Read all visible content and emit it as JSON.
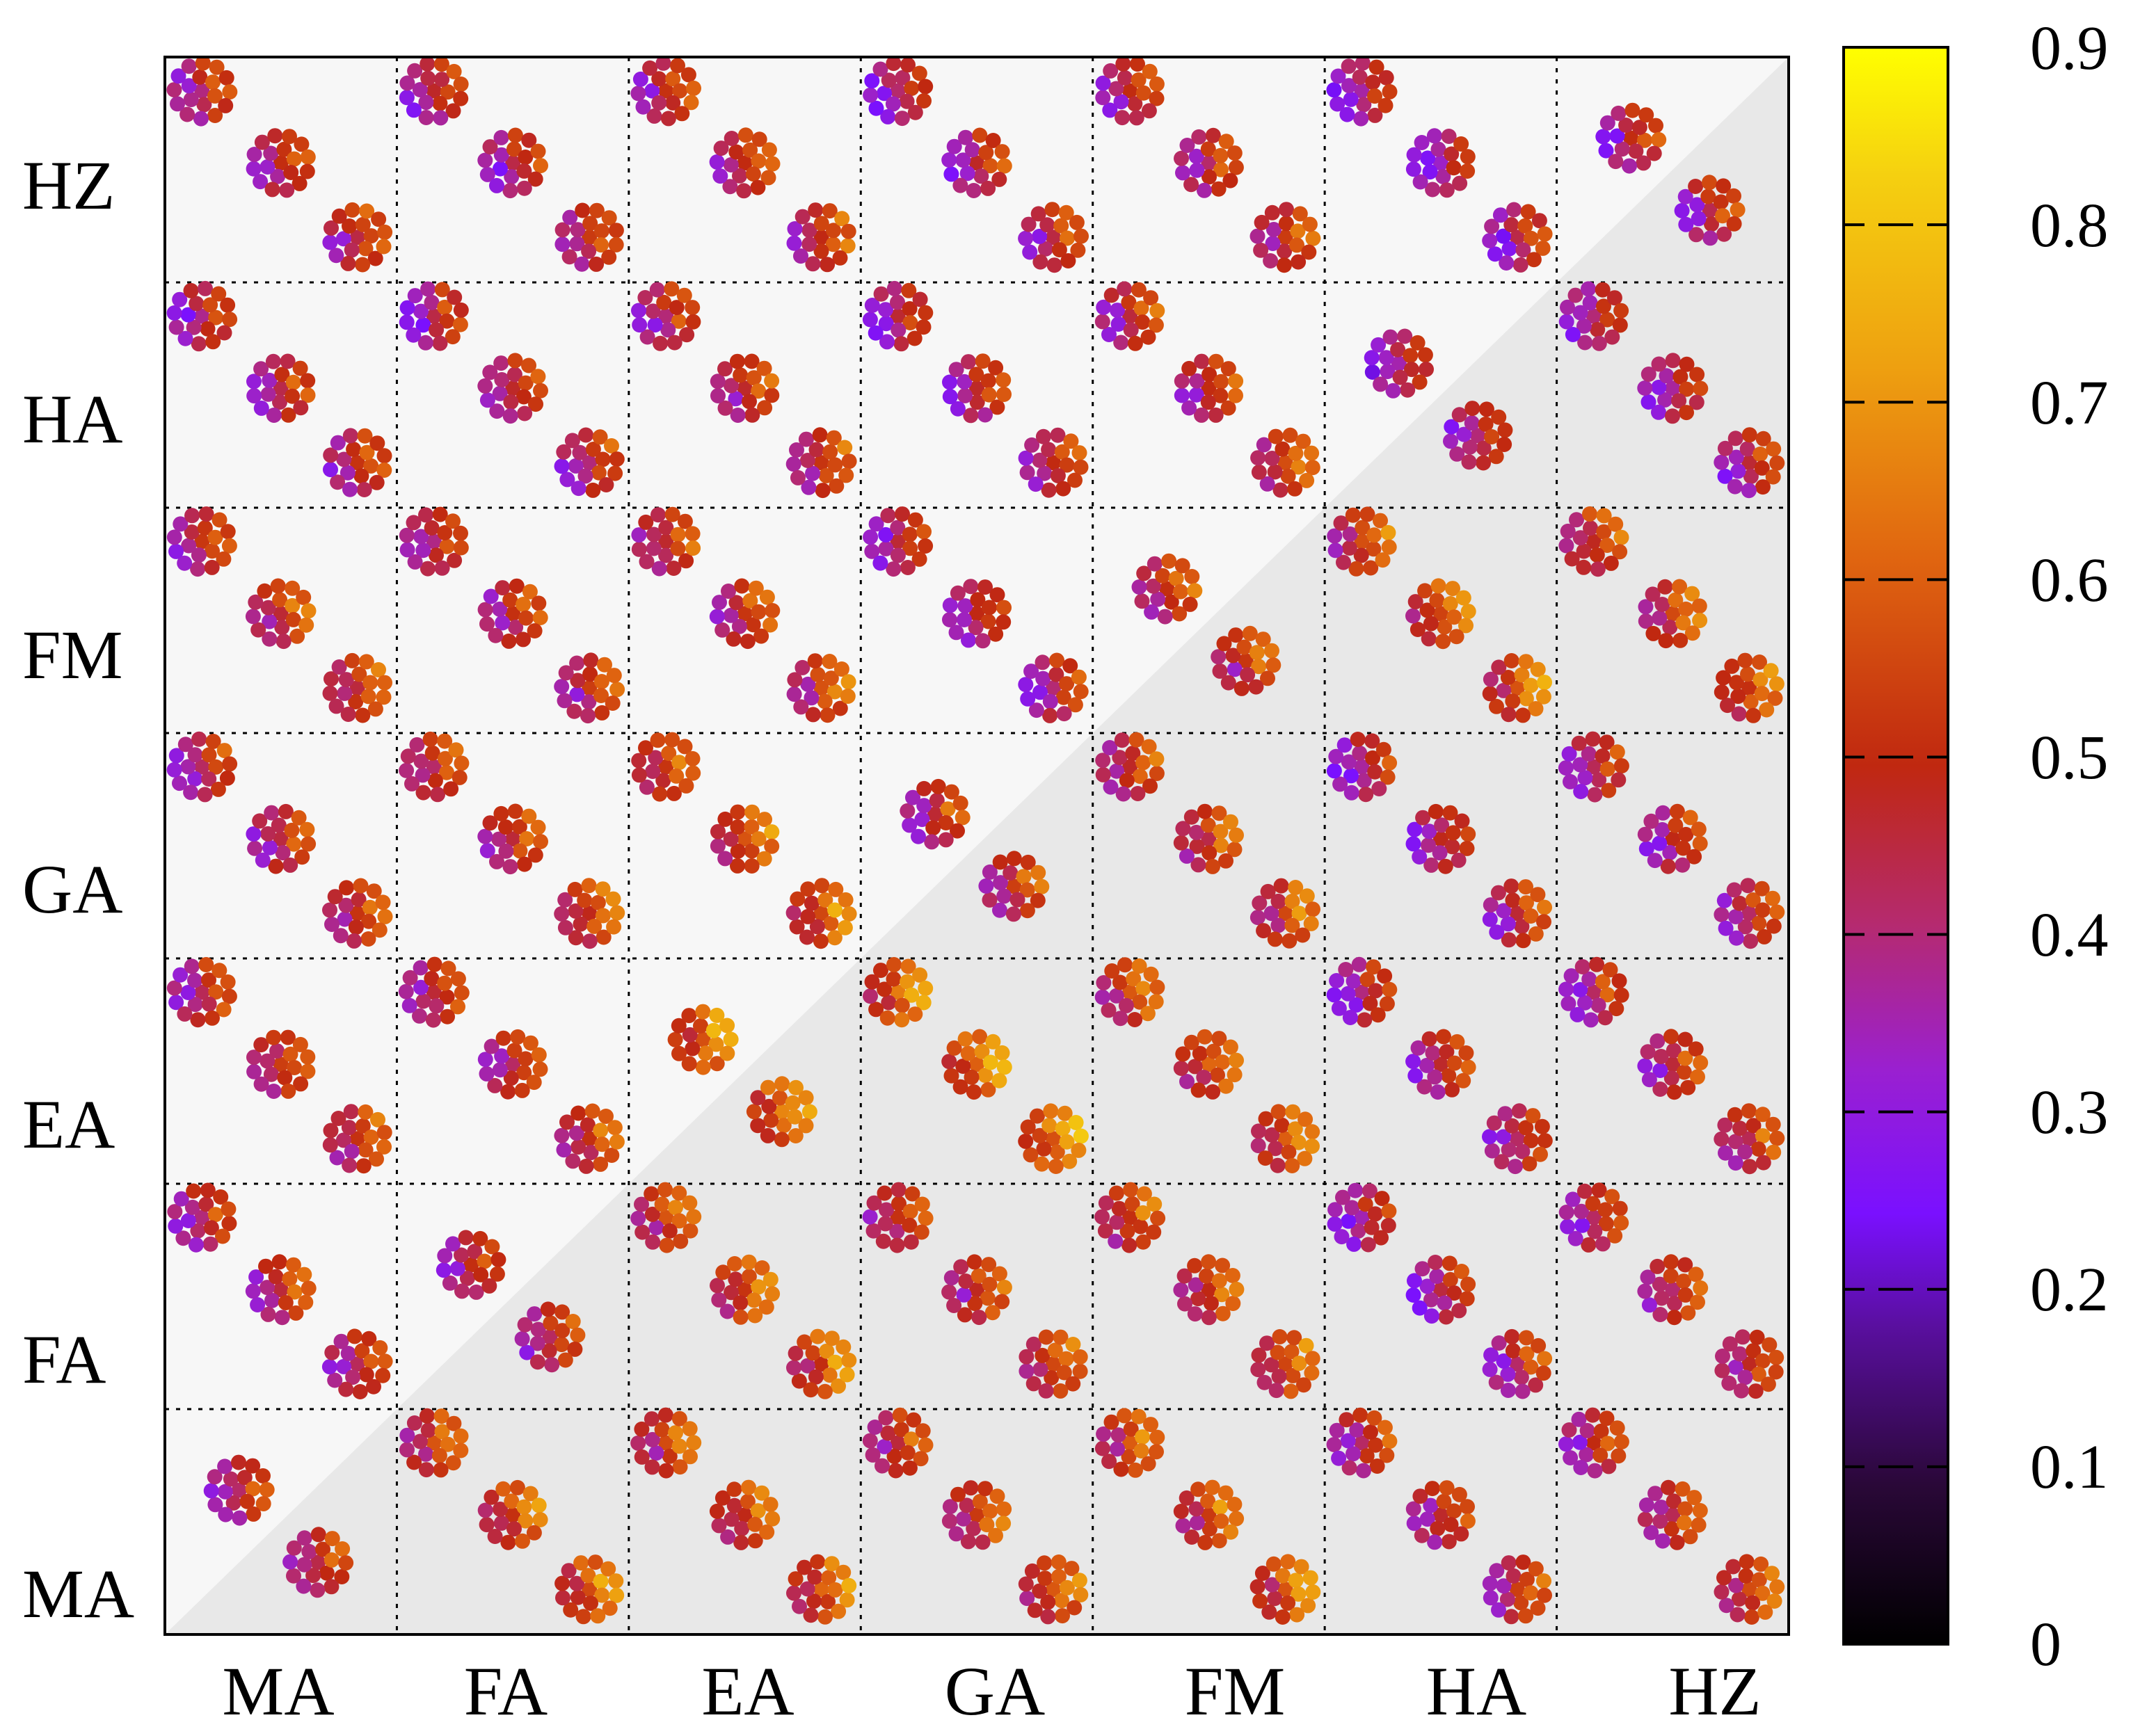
{
  "chart_data": {
    "type": "heatmap",
    "title": "",
    "xlabel": "",
    "ylabel": "",
    "x_categories": [
      "MA",
      "FA",
      "EA",
      "GA",
      "FM",
      "HA",
      "HZ"
    ],
    "y_categories": [
      "MA",
      "FA",
      "EA",
      "GA",
      "FM",
      "HA",
      "HZ"
    ],
    "colorbar": {
      "range": [
        0,
        0.9
      ],
      "ticks": [
        "0",
        "0.1",
        "0.2",
        "0.3",
        "0.4",
        "0.5",
        "0.6",
        "0.7",
        "0.8",
        "0.9"
      ]
    },
    "cell_content": "Each grid cell shows molecular clusters (rings of atoms) colored by value; diagonal cells contain two clusters, off-diagonal cells three.",
    "cell_mean_values": [
      [
        0.46,
        0.55,
        0.54,
        0.51,
        0.55,
        0.47,
        0.49
      ],
      [
        0.47,
        0.46,
        0.55,
        0.5,
        0.53,
        0.43,
        0.47
      ],
      [
        0.48,
        0.48,
        0.62,
        0.61,
        0.55,
        0.44,
        0.46
      ],
      [
        0.47,
        0.5,
        0.55,
        0.49,
        0.51,
        0.44,
        0.45
      ],
      [
        0.49,
        0.47,
        0.5,
        0.44,
        0.51,
        0.55,
        0.53
      ],
      [
        0.45,
        0.44,
        0.47,
        0.43,
        0.49,
        0.43,
        0.42
      ],
      [
        0.47,
        0.44,
        0.48,
        0.44,
        0.47,
        0.4,
        0.46
      ]
    ]
  },
  "colors": {
    "upper_triangle_bg": "#f7f7f7",
    "lower_triangle_bg": "#e8e8e8",
    "colormap": [
      "#000000",
      "#3a0a5a",
      "#7a0fff",
      "#9040e0",
      "#b02a90",
      "#c02a10",
      "#e06010",
      "#f0a010",
      "#ffee00"
    ]
  }
}
